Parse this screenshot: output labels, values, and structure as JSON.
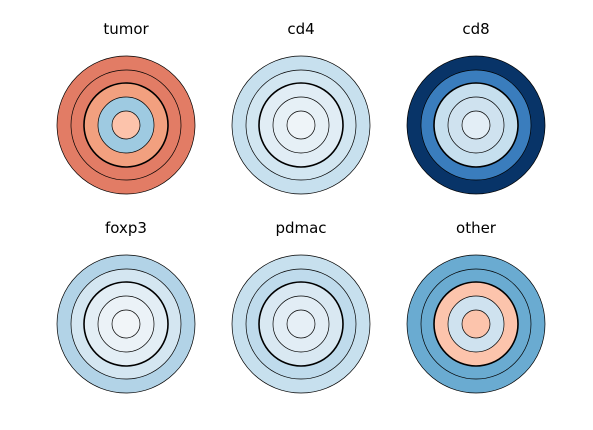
{
  "chart_data": [
    {
      "type": "concentric-rings",
      "title": "tumor",
      "rings": [
        {
          "fill": "#e27c65",
          "outline": "thin"
        },
        {
          "fill": "#e27c65",
          "outline": "thin"
        },
        {
          "fill": "#f2a07f",
          "outline": "bold"
        },
        {
          "fill": "#9ecae1",
          "outline": "thin"
        },
        {
          "fill": "#fcc3ab",
          "outline": "thin"
        }
      ]
    },
    {
      "type": "concentric-rings",
      "title": "cd4",
      "rings": [
        {
          "fill": "#c7e0ee",
          "outline": "thin"
        },
        {
          "fill": "#d2e6f1",
          "outline": "thin"
        },
        {
          "fill": "#e1edf5",
          "outline": "bold"
        },
        {
          "fill": "#e6f0f6",
          "outline": "thin"
        },
        {
          "fill": "#eef4f8",
          "outline": "thin"
        }
      ]
    },
    {
      "type": "concentric-rings",
      "title": "cd8",
      "rings": [
        {
          "fill": "#083468",
          "outline": "thin"
        },
        {
          "fill": "#3a7dbd",
          "outline": "thin"
        },
        {
          "fill": "#c6dfee",
          "outline": "bold"
        },
        {
          "fill": "#cfe2ef",
          "outline": "thin"
        },
        {
          "fill": "#e3eef6",
          "outline": "thin"
        }
      ]
    },
    {
      "type": "concentric-rings",
      "title": "foxp3",
      "rings": [
        {
          "fill": "#b2d3e7",
          "outline": "thin"
        },
        {
          "fill": "#d4e6f1",
          "outline": "thin"
        },
        {
          "fill": "#e3eef5",
          "outline": "bold"
        },
        {
          "fill": "#ebf2f7",
          "outline": "thin"
        },
        {
          "fill": "#f1f5f8",
          "outline": "thin"
        }
      ]
    },
    {
      "type": "concentric-rings",
      "title": "pdmac",
      "rings": [
        {
          "fill": "#c7e0ee",
          "outline": "thin"
        },
        {
          "fill": "#bfdbec",
          "outline": "thin"
        },
        {
          "fill": "#d9e8f2",
          "outline": "bold"
        },
        {
          "fill": "#e2edf5",
          "outline": "thin"
        },
        {
          "fill": "#e6eff6",
          "outline": "thin"
        }
      ]
    },
    {
      "type": "concentric-rings",
      "title": "other",
      "rings": [
        {
          "fill": "#6aabd1",
          "outline": "thin"
        },
        {
          "fill": "#6aabd1",
          "outline": "thin"
        },
        {
          "fill": "#fcc4ac",
          "outline": "bold"
        },
        {
          "fill": "#cfe2ef",
          "outline": "thin"
        },
        {
          "fill": "#fcc4ac",
          "outline": "thin"
        }
      ]
    }
  ]
}
